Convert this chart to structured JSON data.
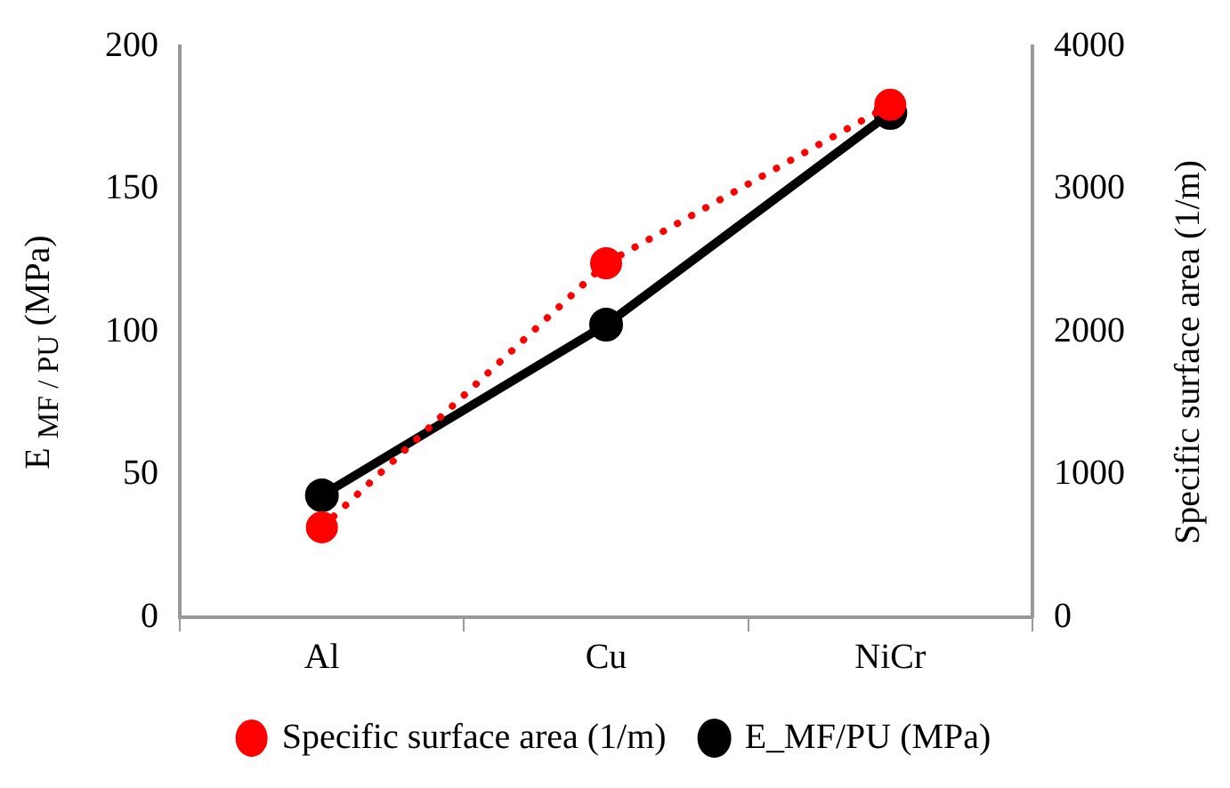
{
  "chart_data": {
    "type": "line",
    "categories": [
      "Al",
      "Cu",
      "NiCr"
    ],
    "ylabel": "E $_{MF / PU}$ (MPa)",
    "y2label": "Specific surface area (1/m)",
    "ylim": [
      0,
      200
    ],
    "yticks": [
      0,
      50,
      100,
      150,
      200
    ],
    "y2lim": [
      0,
      4000
    ],
    "y2ticks": [
      0,
      1000,
      2000,
      3000,
      4000
    ],
    "series": [
      {
        "name": "E_MF/PU (MPa)",
        "color": "#000000",
        "values": [
          42.7,
          102.5,
          176.6
        ],
        "line_style": "solid"
      },
      {
        "name": "Specific surface area (1/m)",
        "color": "#ff0000",
        "values": [
          630,
          2480,
          3590
        ],
        "axis": "y2",
        "line_style": "dotted"
      }
    ],
    "marker": "circle",
    "legend": "bottom",
    "grid": false
  }
}
